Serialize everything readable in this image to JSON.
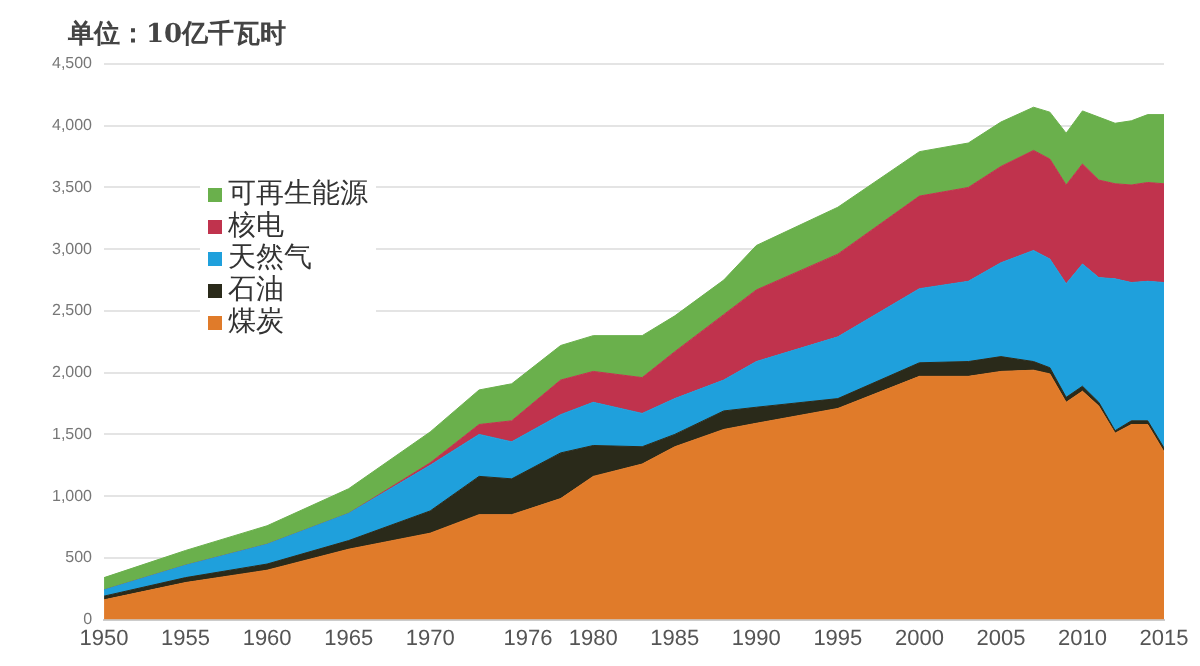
{
  "chart_data": {
    "type": "area",
    "stacked": true,
    "ylabel": "单位：10亿千瓦时",
    "x": [
      1950,
      1955,
      1960,
      1965,
      1970,
      1973,
      1975,
      1978,
      1980,
      1983,
      1985,
      1988,
      1990,
      1995,
      2000,
      2003,
      2005,
      2007,
      2008,
      2009,
      2010,
      2011,
      2012,
      2013,
      2014,
      2015
    ],
    "series": [
      {
        "name": "煤炭",
        "color": "#e07b2a",
        "values": [
          160,
          300,
          400,
          570,
          700,
          850,
          850,
          980,
          1160,
          1260,
          1400,
          1540,
          1590,
          1710,
          1970,
          1970,
          2010,
          2020,
          1990,
          1760,
          1850,
          1730,
          1510,
          1580,
          1580,
          1360
        ]
      },
      {
        "name": "石油",
        "color": "#2a2a1a",
        "values": [
          30,
          40,
          50,
          70,
          180,
          310,
          290,
          370,
          250,
          140,
          100,
          150,
          130,
          80,
          110,
          120,
          120,
          70,
          50,
          40,
          40,
          30,
          20,
          30,
          30,
          30
        ]
      },
      {
        "name": "天然气",
        "color": "#1fa0dc",
        "values": [
          50,
          100,
          160,
          220,
          370,
          340,
          300,
          310,
          350,
          270,
          290,
          250,
          370,
          500,
          600,
          650,
          760,
          900,
          880,
          920,
          990,
          1010,
          1230,
          1120,
          1130,
          1340
        ]
      },
      {
        "name": "核电",
        "color": "#c0334d",
        "values": [
          0,
          0,
          0,
          0,
          20,
          80,
          170,
          280,
          250,
          290,
          380,
          530,
          580,
          670,
          750,
          760,
          780,
          810,
          810,
          800,
          810,
          790,
          770,
          790,
          800,
          800
        ]
      },
      {
        "name": "可再生能源",
        "color": "#6ab04c",
        "values": [
          100,
          120,
          150,
          200,
          250,
          280,
          300,
          280,
          290,
          340,
          290,
          280,
          360,
          380,
          360,
          360,
          360,
          350,
          380,
          420,
          430,
          510,
          490,
          520,
          550,
          560
        ]
      }
    ],
    "xlim": [
      1950,
      2015
    ],
    "xticks": [
      1950,
      1955,
      1960,
      1965,
      1970,
      1976,
      1980,
      1985,
      1990,
      1995,
      2000,
      2005,
      2010,
      2015
    ],
    "ylim": [
      0,
      4500
    ],
    "yticks": [
      0,
      {
        "value": 500,
        "label": "500"
      },
      {
        "value": 1000,
        "label": "1,000"
      },
      {
        "value": 1500,
        "label": "1,500"
      },
      {
        "value": 2000,
        "label": "2,000"
      },
      {
        "value": 2500,
        "label": "2,500"
      },
      {
        "value": 3000,
        "label": "3,000"
      },
      {
        "value": 3500,
        "label": "3,500"
      },
      {
        "value": 4000,
        "label": "4,000"
      },
      {
        "value": 4500,
        "label": "4,500"
      }
    ],
    "grid": "y",
    "legend": "top left"
  }
}
